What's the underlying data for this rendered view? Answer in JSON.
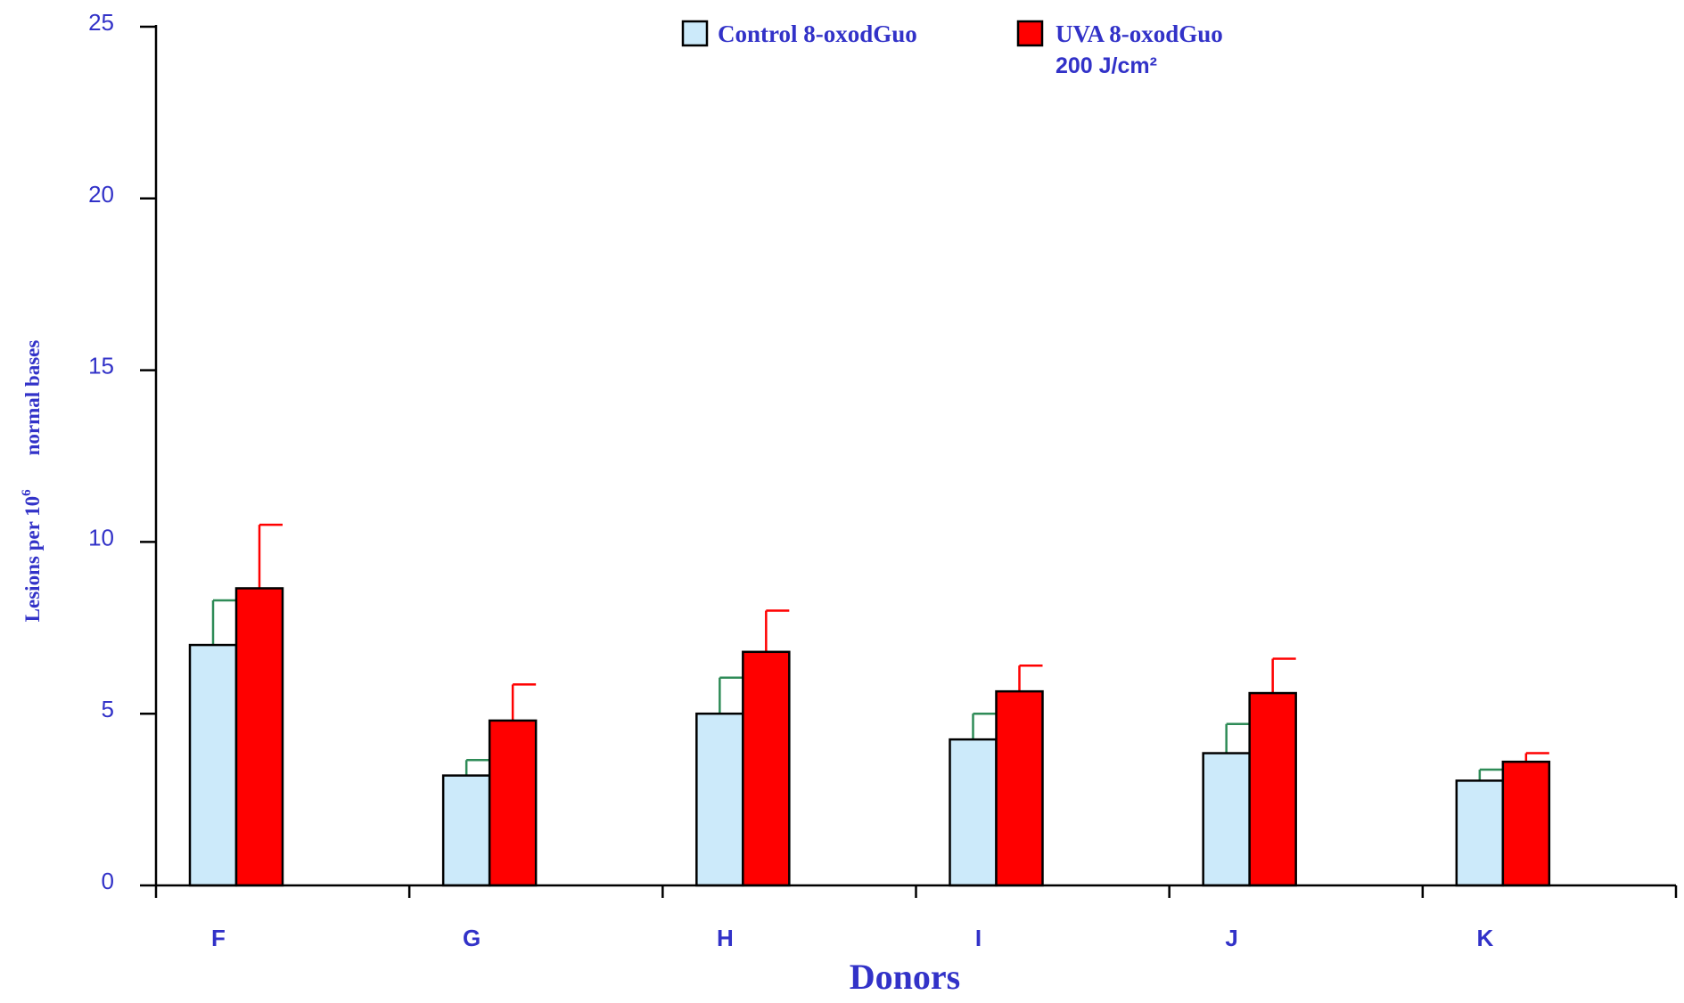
{
  "chart_data": {
    "type": "bar",
    "categories": [
      "F",
      "G",
      "H",
      "I",
      "J",
      "K"
    ],
    "series": [
      {
        "name": "Control 8-oxodGuo",
        "color": "#cceafa",
        "values": [
          7.0,
          3.2,
          5.0,
          4.25,
          3.85,
          3.05
        ],
        "errors": [
          1.3,
          0.45,
          1.05,
          0.75,
          0.85,
          0.32
        ]
      },
      {
        "name": "UVA 8-oxodGuo",
        "name_line2": "200 J/cm²",
        "color": "#ff0000",
        "values": [
          8.65,
          4.8,
          6.8,
          5.65,
          5.6,
          3.6
        ],
        "errors": [
          1.85,
          1.05,
          1.2,
          0.75,
          1.0,
          0.25
        ]
      }
    ],
    "error_bar_colors": [
      "#2e8b57",
      "#ff0000"
    ],
    "yticks": [
      0,
      5,
      10,
      15,
      20,
      25
    ],
    "ylim": [
      0,
      25
    ],
    "xlabel": "Donors",
    "ylabel_part1": "Lesions per 10",
    "ylabel_sup": "6",
    "ylabel_part2": "normal bases",
    "legend_position": "top-center",
    "grid": false
  }
}
